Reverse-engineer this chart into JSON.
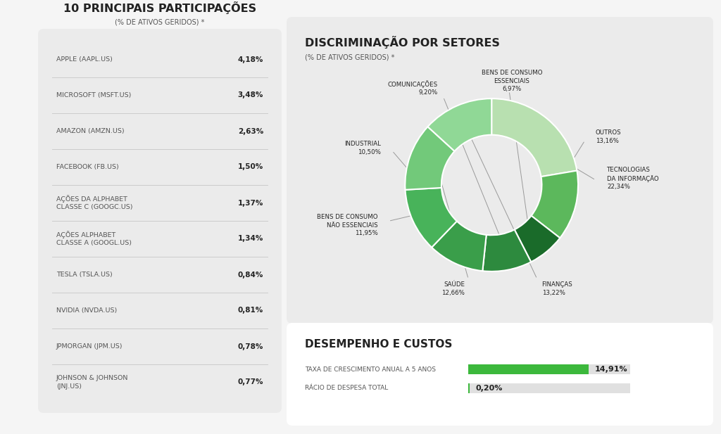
{
  "bg_color": "#f5f5f5",
  "panel_color": "#ebebeb",
  "white": "#ffffff",
  "left_title": "10 PRINCIPAIS PARTICIPAÇÕES",
  "left_subtitle": "(% DE ATIVOS GERIDOS) *",
  "companies": [
    "APPLE (AAPL.US)",
    "MICROSOFT (MSFT.US)",
    "AMAZON (AMZN.US)",
    "FACEBOOK (FB.US)",
    "AÇÕES DA ALPHABET\nCLASSE C (GOOGC.US)",
    "AÇÕES ALPHABET\nCLASSE A (GOOGL.US)",
    "TESLA (TSLA.US)",
    "NVIDIA (NVDA.US)",
    "JPMORGAN (JPM.US)",
    "JOHNSON & JOHNSON\n(JNJ.US)"
  ],
  "values": [
    "4,18%",
    "3,48%",
    "2,63%",
    "1,50%",
    "1,37%",
    "1,34%",
    "0,84%",
    "0,81%",
    "0,78%",
    "0,77%"
  ],
  "right_title": "DISCRIMINAÇÃO POR SETORES",
  "right_subtitle": "(% DE ATIVOS GERIDOS) *",
  "pie_labels": [
    "TECNOLOGIAS\nDA INFORMAÇÃO",
    "OUTROS",
    "BENS DE CONSUMO\nESSENCIAIS",
    "COMUNICAÇÕES",
    "INDUSTRIAL",
    "BENS DE CONSUMO\nNÃO ESSENCIAIS",
    "SAÚDE",
    "FINANÇAS"
  ],
  "pie_values": [
    22.34,
    13.16,
    6.97,
    9.2,
    10.5,
    11.95,
    12.66,
    13.22
  ],
  "pie_pct_labels": [
    "22,34%",
    "13,16%",
    "6,97%",
    "9,20%",
    "10,50%",
    "11,95%",
    "12,66%",
    "13,22%"
  ],
  "pie_colors": [
    "#b8e0b0",
    "#5cb85c",
    "#1a6b2a",
    "#2d8a3e",
    "#3a9e4a",
    "#48b35a",
    "#72c97a",
    "#90d896"
  ],
  "bottom_title": "DESEMPENHO E CUSTOS",
  "bar_label1": "TAXA DE CRESCIMENTO ANUAL A 5 ANOS",
  "bar_value1": "14,91%",
  "bar_pct1": 14.91,
  "bar_max1": 20.0,
  "bar_label2": "RÁCIO DE DESPESA TOTAL",
  "bar_value2": "0,20%",
  "bar_pct2": 0.2,
  "bar_max2": 20.0,
  "bar_color": "#3cb83c",
  "text_color": "#222222",
  "label_color": "#555555",
  "sep_color": "#cccccc"
}
